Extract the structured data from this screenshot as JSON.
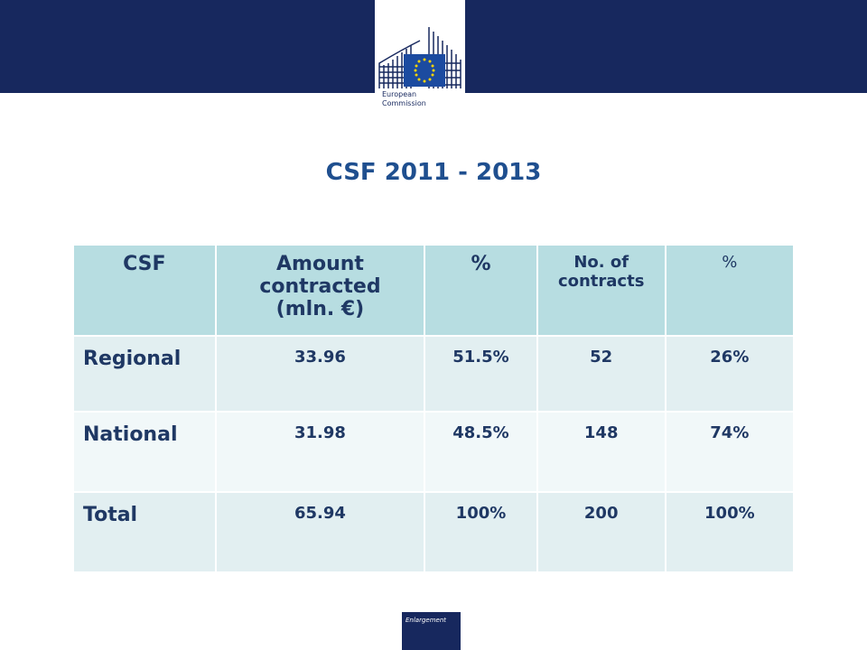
{
  "header": {
    "logo_text": [
      "European",
      "Commission"
    ]
  },
  "title": "CSF 2011 - 2013",
  "table": {
    "header": [
      "CSF",
      "Amount contracted (mln. €)",
      "%",
      "No. of contracts",
      "%"
    ],
    "rows": [
      [
        "Regional",
        "33.96",
        "51.5%",
        "52",
        "26%"
      ],
      [
        "National",
        "31.98",
        "48.5%",
        "148",
        "74%"
      ],
      [
        "Total",
        "65.94",
        "100%",
        "200",
        "100%"
      ]
    ]
  },
  "footer": {
    "label": "Enlargement"
  }
}
